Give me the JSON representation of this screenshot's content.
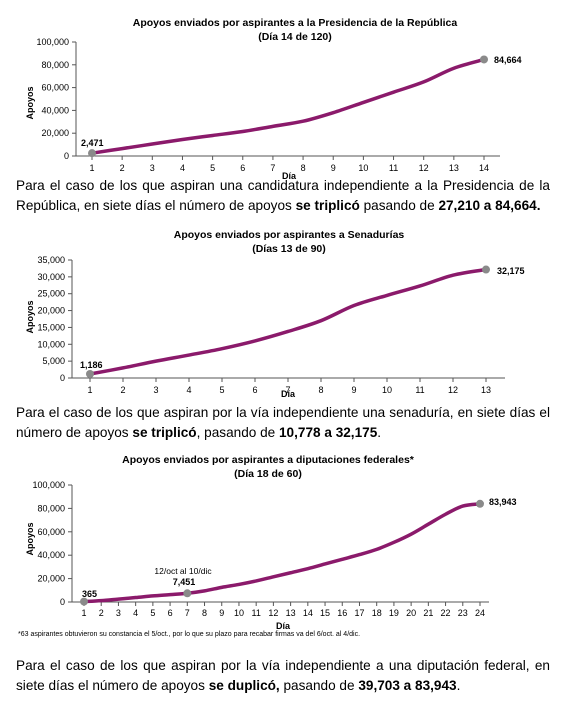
{
  "charts": [
    {
      "title": "Apoyos enviados por aspirantes a la Presidencia de la República",
      "subtitle": "(Día 14 de 120)",
      "ylabel": "Apoyos",
      "xlabel": "Día",
      "yticks": [
        "0",
        "20,000",
        "40,000",
        "60,000",
        "80,000",
        "100,000"
      ],
      "first_label": "2,471",
      "last_label": "84,664"
    },
    {
      "title": "Apoyos enviados por aspirantes a Senadurías",
      "subtitle": "(Días 13 de 90)",
      "ylabel": "Apoyos",
      "xlabel": "Día",
      "yticks": [
        "0",
        "5,000",
        "10,000",
        "15,000",
        "20,000",
        "25,000",
        "30,000",
        "35,000"
      ],
      "first_label": "1,186",
      "last_label": "32,175"
    },
    {
      "title": "Apoyos enviados por aspirantes a diputaciones federales*",
      "subtitle": "(Día 18 de 60)",
      "ylabel": "Apoyos",
      "xlabel": "Día",
      "yticks": [
        "0",
        "20,000",
        "40,000",
        "60,000",
        "80,000",
        "100,000"
      ],
      "first_label": "365",
      "mid_label": "7,451",
      "mid_annotation": "12/oct al 10/dic",
      "last_label": "83,943",
      "footnote": "*63 aspirantes obtuvieron su constancia el 5/oct., por lo que su plazo para recabar firmas va del 6/oct. al 4/dic."
    }
  ],
  "paragraphs": [
    {
      "text1": "Para el caso de los que aspiran una candidatura independiente a la Presidencia de la República, en siete días el número de apoyos ",
      "bold1": "se triplicó",
      "text2": " pasando de ",
      "bold2": "27,210 a 84,664.",
      "text3": ""
    },
    {
      "text1": "Para el caso de los que aspiran por la vía independiente una senaduría, en siete días el número de apoyos ",
      "bold1": "se triplicó",
      "text2": ", pasando de ",
      "bold2": "10,778 a 32,175",
      "text3": "."
    },
    {
      "text1": "Para el caso de los que aspiran por la vía independiente a una diputación federal, en siete días el número de apoyos ",
      "bold1": "se duplicó,",
      "text2": " pasando de ",
      "bold2": "39,703 a 83,943",
      "text3": "."
    }
  ],
  "colors": {
    "line": "#8b1a6b",
    "marker": "#8a8a8a"
  },
  "chart_data": [
    {
      "type": "line",
      "title": "Apoyos enviados por aspirantes a la Presidencia de la República",
      "subtitle": "(Día 14 de 120)",
      "xlabel": "Día",
      "ylabel": "Apoyos",
      "x": [
        1,
        2,
        3,
        4,
        5,
        6,
        7,
        8,
        9,
        10,
        11,
        12,
        13,
        14
      ],
      "y": [
        2471,
        6500,
        10500,
        14500,
        18000,
        21500,
        26000,
        30500,
        38000,
        47000,
        56000,
        65000,
        77000,
        84664
      ],
      "ylim": [
        0,
        100000
      ],
      "grid": false
    },
    {
      "type": "line",
      "title": "Apoyos enviados por aspirantes a Senadurías",
      "subtitle": "(Días 13 de 90)",
      "xlabel": "Día",
      "ylabel": "Apoyos",
      "x": [
        1,
        2,
        3,
        4,
        5,
        6,
        7,
        8,
        9,
        10,
        11,
        12,
        13
      ],
      "y": [
        1186,
        3000,
        5000,
        6800,
        8700,
        11000,
        13800,
        17000,
        21500,
        24500,
        27300,
        30500,
        32175
      ],
      "ylim": [
        0,
        35000
      ],
      "grid": false
    },
    {
      "type": "line",
      "title": "Apoyos enviados por aspirantes a diputaciones federales*",
      "subtitle": "(Día 18 de 60)",
      "xlabel": "Día",
      "ylabel": "Apoyos",
      "x": [
        1,
        2,
        3,
        4,
        5,
        6,
        7,
        8,
        9,
        10,
        11,
        12,
        13,
        14,
        15,
        16,
        17,
        18,
        19,
        20,
        21,
        22,
        23,
        24
      ],
      "y": [
        365,
        1200,
        2500,
        3800,
        5200,
        6300,
        7451,
        9500,
        12500,
        15000,
        18000,
        21500,
        25000,
        28500,
        32500,
        36500,
        40500,
        45000,
        51000,
        58000,
        66500,
        75000,
        82000,
        83943
      ],
      "ylim": [
        0,
        100000
      ],
      "grid": false
    }
  ]
}
